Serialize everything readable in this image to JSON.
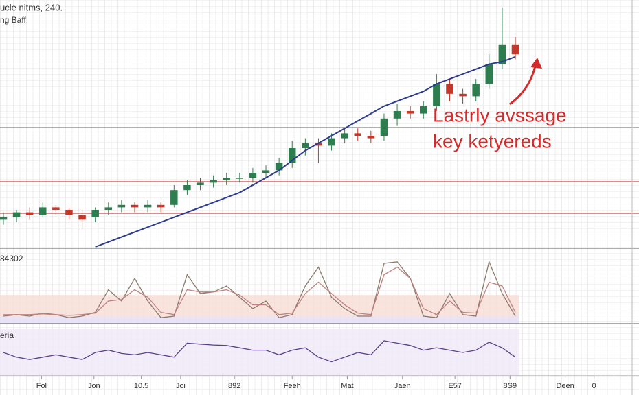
{
  "chart_data": [
    {
      "type": "candlestick",
      "title": "ucle nitms, 240.",
      "subtitle": "ng Baff;",
      "annotation": [
        "Lastrly avssage",
        "key ketyereds"
      ],
      "xlim": [
        -0.26,
        47.9
      ],
      "ylim": [
        0,
        100
      ],
      "up_color": "#2e7d4f",
      "down_color": "#c0392b",
      "open": [
        11,
        12,
        14,
        13,
        16,
        15,
        13,
        12,
        15,
        16,
        17,
        16,
        17,
        17,
        23,
        25,
        26,
        27,
        28,
        28,
        30,
        31,
        34,
        40,
        42,
        41,
        44,
        46,
        45,
        45,
        52,
        55,
        54,
        57,
        66,
        62,
        61,
        66,
        74,
        82
      ],
      "high": [
        14,
        15,
        16,
        18,
        17,
        16,
        15,
        16,
        18,
        19,
        18,
        19,
        18,
        25,
        27,
        28,
        29,
        30,
        30,
        32,
        33,
        36,
        43,
        44,
        44,
        46,
        48,
        48,
        47,
        54,
        58,
        57,
        59,
        70,
        68,
        64,
        68,
        78,
        97,
        85
      ],
      "low": [
        9,
        10,
        11,
        12,
        13,
        11,
        7,
        10,
        13,
        14,
        14,
        14,
        14,
        16,
        21,
        23,
        24,
        25,
        26,
        26,
        28,
        29,
        32,
        37,
        34,
        39,
        42,
        43,
        42,
        43,
        49,
        52,
        52,
        55,
        59,
        58,
        59,
        64,
        72,
        76
      ],
      "close": [
        12,
        14,
        13,
        16,
        15,
        13,
        11,
        15,
        16,
        17,
        16,
        17,
        16,
        23,
        25,
        26,
        27,
        28,
        28,
        30,
        31,
        34,
        40,
        42,
        41,
        44,
        46,
        45,
        44,
        52,
        55,
        54,
        57,
        66,
        62,
        61,
        66,
        74,
        82,
        78
      ],
      "series": [
        {
          "color": "#2b3a8f",
          "values": [
            null,
            null,
            null,
            null,
            null,
            null,
            null,
            0,
            2,
            4,
            6,
            8,
            10,
            12,
            14,
            16,
            18,
            20,
            22,
            25,
            28,
            31,
            35,
            39,
            42,
            45,
            48,
            51,
            54,
            57,
            59,
            61,
            63,
            66,
            68,
            70,
            72,
            74,
            75,
            77
          ]
        }
      ],
      "hlines": [
        {
          "value": 48.3,
          "color": "#666666"
        },
        {
          "value": 26.4,
          "color": "#d04040"
        },
        {
          "value": 13.6,
          "color": "#d04040"
        }
      ]
    },
    {
      "type": "line",
      "title": "84302",
      "xlim": [
        -0.26,
        47.9
      ],
      "ylim": [
        0,
        100
      ],
      "bands": [
        {
          "range": [
            0,
            10
          ],
          "color": "#e6dcf5"
        },
        {
          "range": [
            10,
            38
          ],
          "color": "#f7dcd4"
        }
      ],
      "series": [
        {
          "color": "#8a7a6a",
          "values": [
            10,
            12,
            10,
            14,
            12,
            8,
            10,
            15,
            45,
            30,
            60,
            30,
            8,
            10,
            65,
            40,
            42,
            50,
            35,
            20,
            30,
            8,
            12,
            50,
            75,
            35,
            20,
            10,
            10,
            80,
            82,
            60,
            10,
            8,
            40,
            12,
            10,
            82,
            40,
            10
          ]
        },
        {
          "color": "#c08080",
          "values": [
            12,
            12,
            12,
            13,
            12,
            11,
            12,
            14,
            30,
            32,
            45,
            35,
            15,
            12,
            45,
            42,
            42,
            45,
            38,
            25,
            25,
            12,
            14,
            40,
            55,
            40,
            25,
            14,
            12,
            65,
            75,
            60,
            20,
            12,
            30,
            15,
            14,
            55,
            50,
            15
          ]
        }
      ]
    },
    {
      "type": "line",
      "title": "eria",
      "xlim": [
        -0.26,
        47.9
      ],
      "ylim": [
        0,
        100
      ],
      "bands": [
        {
          "range": [
            0,
            100
          ],
          "color": "#efe8f8"
        }
      ],
      "series": [
        {
          "color": "#5a3f8a",
          "values": [
            50,
            40,
            35,
            40,
            45,
            40,
            35,
            50,
            55,
            48,
            45,
            50,
            45,
            40,
            70,
            68,
            66,
            65,
            60,
            55,
            55,
            45,
            55,
            60,
            40,
            30,
            40,
            50,
            45,
            75,
            70,
            65,
            55,
            60,
            55,
            50,
            55,
            72,
            60,
            40
          ]
        }
      ],
      "xticks": [
        {
          "value": 2.9,
          "label": "Fol"
        },
        {
          "value": 6.9,
          "label": "Jon"
        },
        10.5,
        {
          "value": 13.5,
          "label": "Joi"
        },
        {
          "value": 17.6,
          "label": "892"
        },
        {
          "value": 22,
          "label": "Feeh"
        },
        {
          "value": 26.2,
          "label": "Mat"
        },
        {
          "value": 30.4,
          "label": "Jaen"
        },
        {
          "value": 34.4,
          "label": "E57"
        },
        {
          "value": 38.6,
          "label": "8S9"
        },
        {
          "value": 42.8,
          "label": "Deen"
        },
        {
          "value": 45,
          "label": "0"
        }
      ]
    }
  ]
}
